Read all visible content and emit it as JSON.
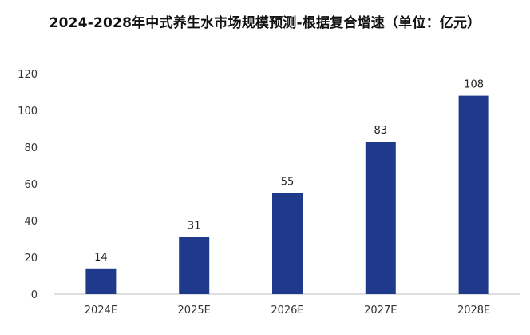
{
  "chart_data": {
    "type": "bar",
    "title": "2024-2028年中式养生水市场规模预测-根据复合增速（单位：亿元）",
    "xlabel": "",
    "ylabel": "",
    "categories": [
      "2024E",
      "2025E",
      "2026E",
      "2027E",
      "2028E"
    ],
    "values": [
      14,
      31,
      55,
      83,
      108
    ],
    "data_labels": [
      "14",
      "31",
      "55",
      "83",
      "108"
    ],
    "y_ticks": [
      0,
      20,
      40,
      60,
      80,
      100,
      120
    ],
    "ylim": [
      0,
      120
    ],
    "grid": false,
    "legend": "none",
    "bar_color": "#1f3a8a"
  }
}
